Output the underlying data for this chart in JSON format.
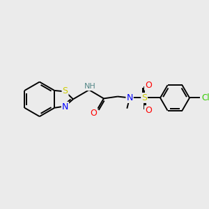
{
  "bg_color": "#ebebeb",
  "bond_color": "#000000",
  "atom_colors": {
    "S": "#cccc00",
    "N": "#0000ff",
    "O": "#ff0000",
    "Cl": "#33cc00",
    "H": "#558888",
    "C": "#000000"
  },
  "figsize": [
    3.0,
    3.0
  ],
  "dpi": 100,
  "lw": 1.4,
  "inner_lw": 1.3
}
